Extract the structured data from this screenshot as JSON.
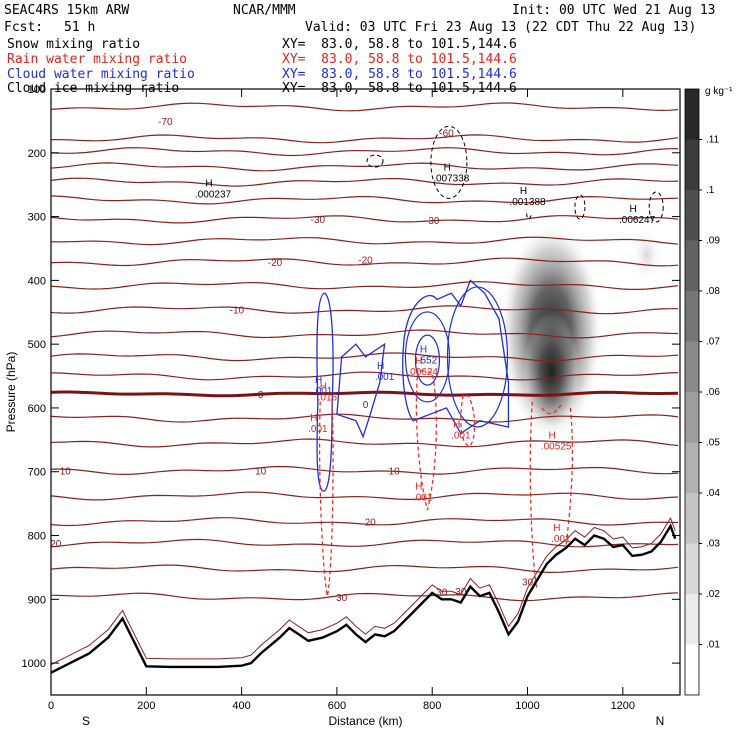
{
  "header": {
    "model": "SEAC4RS 15km ARW",
    "center": "NCAR/MMM",
    "init": "Init: 00 UTC Wed 21 Aug 13",
    "fcst_label": "Fcst:",
    "fcst_value": "51 h",
    "valid": "Valid: 03 UTC Fri 23 Aug 13 (22 CDT Thu 22 Aug 13)"
  },
  "fields": [
    {
      "label": "Snow mixing ratio",
      "xy": "XY=  83.0, 58.8 to 101.5,144.6",
      "color": "#000000"
    },
    {
      "label": "Rain water mixing ratio",
      "xy": "XY=  83.0, 58.8 to 101.5,144.6",
      "color": "#e8211e"
    },
    {
      "label": "Cloud water mixing ratio",
      "xy": "XY=  83.0, 58.8 to 101.5,144.6",
      "color": "#1f2fd6"
    },
    {
      "label": "Cloud ice mixing ratio",
      "xy": "XY=  83.0, 58.8 to 101.5,144.6",
      "color": "#000000"
    }
  ],
  "colorbar": {
    "units": "g kg⁻¹",
    "labels": [
      ".11",
      ".1",
      ".09",
      ".08",
      ".07",
      ".06",
      ".05",
      ".04",
      ".03",
      ".02",
      ".01"
    ]
  },
  "chart_data": {
    "type": "cross-section",
    "xlabel": "Distance (km)",
    "ylabel": "Pressure (hPa)",
    "xlim": [
      0,
      1320
    ],
    "ylim": [
      1050,
      100
    ],
    "xticks": [
      0,
      200,
      400,
      600,
      800,
      1000,
      1200
    ],
    "xtick_labels": [
      "0",
      "200",
      "400",
      "600",
      "800",
      "1000",
      "1200"
    ],
    "yticks": [
      200,
      300,
      400,
      500,
      600,
      700,
      800,
      900,
      1000
    ],
    "ytick_labels": [
      "200",
      "300",
      "400",
      "500",
      "600",
      "700",
      "800",
      "900",
      "1000"
    ],
    "top_tick_label": "100",
    "direction_labels": [
      "S",
      "N"
    ],
    "temperature_contours": [
      {
        "label": "-70",
        "p": 150,
        "label_x": 240
      },
      {
        "label": "-60",
        "p": 168,
        "label_x": 830
      },
      {
        "label": "-30",
        "p": 304,
        "label_x": 560
      },
      {
        "label": "-30",
        "p": 305,
        "label_x": 800
      },
      {
        "label": "-20",
        "p": 371,
        "label_x": 470
      },
      {
        "label": "-20",
        "p": 367,
        "label_x": 660
      },
      {
        "label": "-10",
        "p": 446,
        "label_x": 390
      },
      {
        "label": "10",
        "p": 698,
        "label_x": 30
      },
      {
        "label": "10",
        "p": 698,
        "label_x": 440
      },
      {
        "label": "10",
        "p": 698,
        "label_x": 720
      },
      {
        "label": "20",
        "p": 812,
        "label_x": 10
      },
      {
        "label": "20",
        "p": 778,
        "label_x": 670
      },
      {
        "label": "30",
        "p": 896,
        "label_x": 610
      },
      {
        "label": "30",
        "p": 888,
        "label_x": 820
      },
      {
        "label": "30",
        "p": 887,
        "label_x": 860
      },
      {
        "label": "30",
        "p": 872,
        "label_x": 1000
      }
    ],
    "freezing_level": {
      "label": "0",
      "p": 578
    },
    "maxima": [
      {
        "label": ".000237",
        "x": 340,
        "p": 270,
        "field": "cloud ice"
      },
      {
        "label": ".007338",
        "x": 840,
        "p": 245,
        "field": "cloud ice"
      },
      {
        "label": ".001388",
        "x": 1000,
        "p": 282,
        "field": "cloud ice"
      },
      {
        "label": ".006247",
        "x": 1230,
        "p": 310,
        "field": "cloud ice"
      },
      {
        "label": ".552",
        "x": 790,
        "p": 530,
        "field": "cloud water"
      },
      {
        "label": ".001",
        "x": 570,
        "p": 578,
        "field": "cloud water"
      },
      {
        "label": ".001",
        "x": 700,
        "p": 556,
        "field": "cloud water"
      },
      {
        "label": ".00624",
        "x": 780,
        "p": 548,
        "field": "rain water"
      },
      {
        "label": ".016",
        "x": 580,
        "p": 588,
        "field": "rain water"
      },
      {
        "label": ".001",
        "x": 560,
        "p": 638,
        "field": "rain water"
      },
      {
        "label": ".001",
        "x": 860,
        "p": 648,
        "field": "rain water"
      },
      {
        "label": ".00525",
        "x": 1060,
        "p": 665,
        "field": "rain water"
      },
      {
        "label": ".001",
        "x": 780,
        "p": 745,
        "field": "rain water"
      },
      {
        "label": ".001",
        "x": 1070,
        "p": 810,
        "field": "rain water"
      }
    ],
    "terrain": {
      "x": [
        0,
        40,
        80,
        120,
        150,
        170,
        200,
        250,
        300,
        350,
        400,
        420,
        440,
        480,
        500,
        520,
        540,
        570,
        600,
        620,
        640,
        660,
        680,
        700,
        720,
        760,
        780,
        800,
        820,
        840,
        860,
        880,
        900,
        920,
        940,
        960,
        980,
        1000,
        1020,
        1040,
        1060,
        1080,
        1100,
        1120,
        1140,
        1160,
        1180,
        1200,
        1220,
        1240,
        1260,
        1280,
        1300,
        1310
      ],
      "p": [
        1015,
        1000,
        985,
        960,
        930,
        960,
        1005,
        1006,
        1006,
        1006,
        1004,
        1000,
        985,
        960,
        945,
        955,
        965,
        960,
        950,
        940,
        955,
        967,
        955,
        958,
        950,
        920,
        905,
        890,
        900,
        900,
        905,
        880,
        895,
        890,
        920,
        955,
        935,
        895,
        870,
        845,
        830,
        820,
        805,
        815,
        800,
        805,
        818,
        815,
        832,
        830,
        825,
        810,
        785,
        805
      ]
    },
    "snow_maximum_location": {
      "x": 1050,
      "p": 480
    }
  }
}
